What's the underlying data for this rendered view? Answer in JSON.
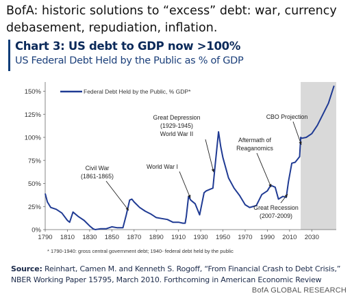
{
  "post": {
    "text": "BofA: historic solutions to “excess” debt: war, currency debasement, repudiation, inflation."
  },
  "figure": {
    "title": "Chart 3: US debt to GDP now >100%",
    "subtitle": "US Federal Debt Held by the Public as % of GDP",
    "footnote": "* 1790-1940: gross central government debt; 1940- federal debt held by the public",
    "source_label": "Source:",
    "source_text": "Reinhart, Camen M. and Kenneth S. Rogoff, “From Financial Crash to Debt Crisis,” NBER Working Paper 15795, March 2010. Forthcoming in American Economic Review",
    "brand": "BofA GLOBAL RESEARCH"
  },
  "colors": {
    "line": "#1f3a93",
    "projection_band": "#d9d9d9",
    "title": "#0b2a5a",
    "subtitle": "#1b3f7a"
  },
  "chart_data": {
    "type": "line",
    "legend_label": "Federal Debt Held by the Public, % GDP*",
    "legend_position": "top-left",
    "grid": false,
    "xlim": [
      1790,
      2052
    ],
    "ylim": [
      0,
      160
    ],
    "xticks": [
      "1790",
      "1810",
      "1830",
      "1850",
      "1870",
      "1890",
      "1910",
      "1930",
      "1950",
      "1970",
      "1990",
      "2010",
      "2030"
    ],
    "yticks": [
      "0%",
      "25%",
      "50%",
      "75%",
      "100%",
      "125%",
      "150%"
    ],
    "shaded_region": [
      2020,
      2052
    ],
    "series": [
      {
        "name": "Federal Debt Held by the Public, % GDP*",
        "x": [
          1790,
          1792,
          1795,
          1800,
          1805,
          1810,
          1812,
          1815,
          1820,
          1825,
          1830,
          1833,
          1835,
          1840,
          1845,
          1850,
          1855,
          1860,
          1863,
          1866,
          1868,
          1870,
          1875,
          1880,
          1885,
          1890,
          1895,
          1900,
          1905,
          1910,
          1914,
          1916,
          1917,
          1919,
          1921,
          1925,
          1929,
          1933,
          1935,
          1939,
          1941,
          1943,
          1946,
          1948,
          1950,
          1955,
          1960,
          1965,
          1970,
          1974,
          1980,
          1985,
          1990,
          1993,
          1997,
          2000,
          2004,
          2007,
          2009,
          2012,
          2015,
          2019,
          2020,
          2021,
          2025,
          2030,
          2035,
          2040,
          2045,
          2050
        ],
        "y": [
          39,
          30,
          24,
          22,
          18,
          10,
          8,
          19,
          14,
          10,
          4,
          1,
          0,
          1,
          1,
          3,
          2,
          2,
          16,
          32,
          33,
          30,
          24,
          20,
          17,
          13,
          12,
          11,
          8,
          8,
          7,
          7,
          14,
          36,
          32,
          28,
          16,
          40,
          42,
          44,
          45,
          70,
          106,
          90,
          78,
          56,
          45,
          37,
          27,
          24,
          26,
          38,
          42,
          48,
          46,
          33,
          36,
          35,
          52,
          72,
          73,
          79,
          100,
          99,
          100,
          104,
          113,
          125,
          137,
          156
        ]
      }
    ],
    "annotations": [
      {
        "text": "Civil War",
        "year": 1865
      },
      {
        "text": "(1861-1865)",
        "year": 1865
      },
      {
        "text": "World War I",
        "year": 1919
      },
      {
        "text": "Great Depression",
        "year": 1933
      },
      {
        "text": "(1929-1945)",
        "year": 1937
      },
      {
        "text": "World War II",
        "year": 1946
      },
      {
        "text": "Aftermath of",
        "year": 1990
      },
      {
        "text": "Reaganomics",
        "year": 1990
      },
      {
        "text": "CBO Projection",
        "year": 2020
      },
      {
        "text": "Great Recession",
        "year": 2009
      },
      {
        "text": "(2007-2009)",
        "year": 2009
      }
    ]
  }
}
